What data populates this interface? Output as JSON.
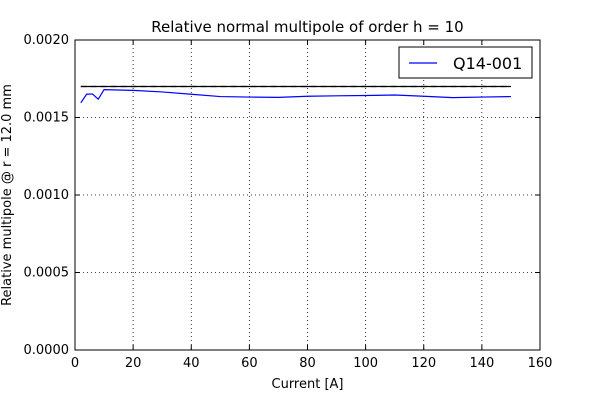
{
  "chart_data": {
    "type": "line",
    "title": "Relative normal multipole of order h = 10",
    "xlabel": "Current [A]",
    "ylabel": "Relative multipole @ r = 12.0 mm",
    "xlim": [
      0,
      160
    ],
    "ylim": [
      0,
      0.002
    ],
    "x_ticks": [
      0,
      20,
      40,
      60,
      80,
      100,
      120,
      140,
      160
    ],
    "y_ticks": [
      0.0,
      0.0005,
      0.001,
      0.0015,
      0.002
    ],
    "x_tick_labels": [
      "0",
      "20",
      "40",
      "60",
      "80",
      "100",
      "120",
      "140",
      "160"
    ],
    "y_tick_labels": [
      "0.0000",
      "0.0005",
      "0.0010",
      "0.0015",
      "0.0020"
    ],
    "grid": true,
    "legend_position": "top-right",
    "series": [
      {
        "name": "Q14-001",
        "color": "#0000ff",
        "style": "solid",
        "x": [
          2,
          4,
          6,
          8,
          10,
          20,
          30,
          40,
          50,
          60,
          70,
          80,
          90,
          100,
          110,
          120,
          130,
          140,
          150
        ],
        "y": [
          0.001595,
          0.00165,
          0.001652,
          0.001618,
          0.00168,
          0.001675,
          0.001665,
          0.00165,
          0.001635,
          0.001632,
          0.00163,
          0.001637,
          0.00164,
          0.001642,
          0.001645,
          0.001637,
          0.001628,
          0.001632,
          0.001635
        ]
      },
      {
        "color": "#000000",
        "style": "solid",
        "x": [
          2,
          150
        ],
        "y": [
          0.0017,
          0.0017
        ]
      },
      {
        "color": "#000000",
        "style": "dashed",
        "x": [
          2,
          150
        ],
        "y": [
          0.0017,
          0.0017
        ]
      }
    ]
  }
}
